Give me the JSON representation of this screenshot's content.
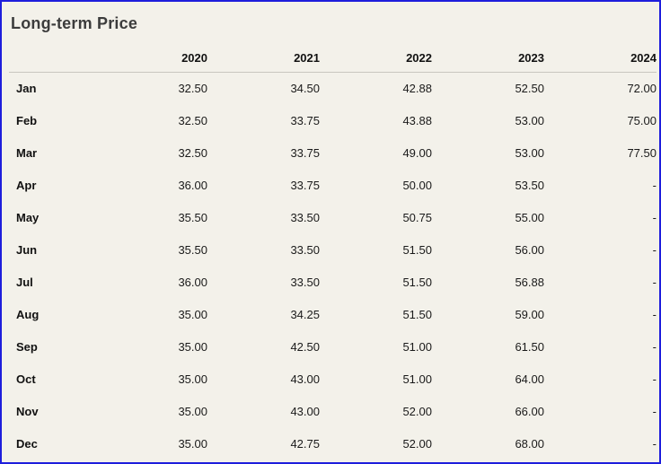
{
  "window": {
    "title": "Long-term Price"
  },
  "colors": {
    "background": "#F3F1EA",
    "border": "#1E1EDC",
    "separator": "#C9C6C0",
    "title_text": "#3C3C3C",
    "header_text": "#111111",
    "value_text": "#1A1A1A"
  },
  "table": {
    "month_column_header": "",
    "years": [
      "2020",
      "2021",
      "2022",
      "2023",
      "2024"
    ],
    "missing_value_placeholder": "-",
    "rows": [
      {
        "month": "Jan",
        "values": [
          "32.50",
          "34.50",
          "42.88",
          "52.50",
          "72.00"
        ]
      },
      {
        "month": "Feb",
        "values": [
          "32.50",
          "33.75",
          "43.88",
          "53.00",
          "75.00"
        ]
      },
      {
        "month": "Mar",
        "values": [
          "32.50",
          "33.75",
          "49.00",
          "53.00",
          "77.50"
        ]
      },
      {
        "month": "Apr",
        "values": [
          "36.00",
          "33.75",
          "50.00",
          "53.50",
          "-"
        ]
      },
      {
        "month": "May",
        "values": [
          "35.50",
          "33.50",
          "50.75",
          "55.00",
          "-"
        ]
      },
      {
        "month": "Jun",
        "values": [
          "35.50",
          "33.50",
          "51.50",
          "56.00",
          "-"
        ]
      },
      {
        "month": "Jul",
        "values": [
          "36.00",
          "33.50",
          "51.50",
          "56.88",
          "-"
        ]
      },
      {
        "month": "Aug",
        "values": [
          "35.00",
          "34.25",
          "51.50",
          "59.00",
          "-"
        ]
      },
      {
        "month": "Sep",
        "values": [
          "35.00",
          "42.50",
          "51.00",
          "61.50",
          "-"
        ]
      },
      {
        "month": "Oct",
        "values": [
          "35.00",
          "43.00",
          "51.00",
          "64.00",
          "-"
        ]
      },
      {
        "month": "Nov",
        "values": [
          "35.00",
          "43.00",
          "52.00",
          "66.00",
          "-"
        ]
      },
      {
        "month": "Dec",
        "values": [
          "35.00",
          "42.75",
          "52.00",
          "68.00",
          "-"
        ]
      }
    ]
  }
}
